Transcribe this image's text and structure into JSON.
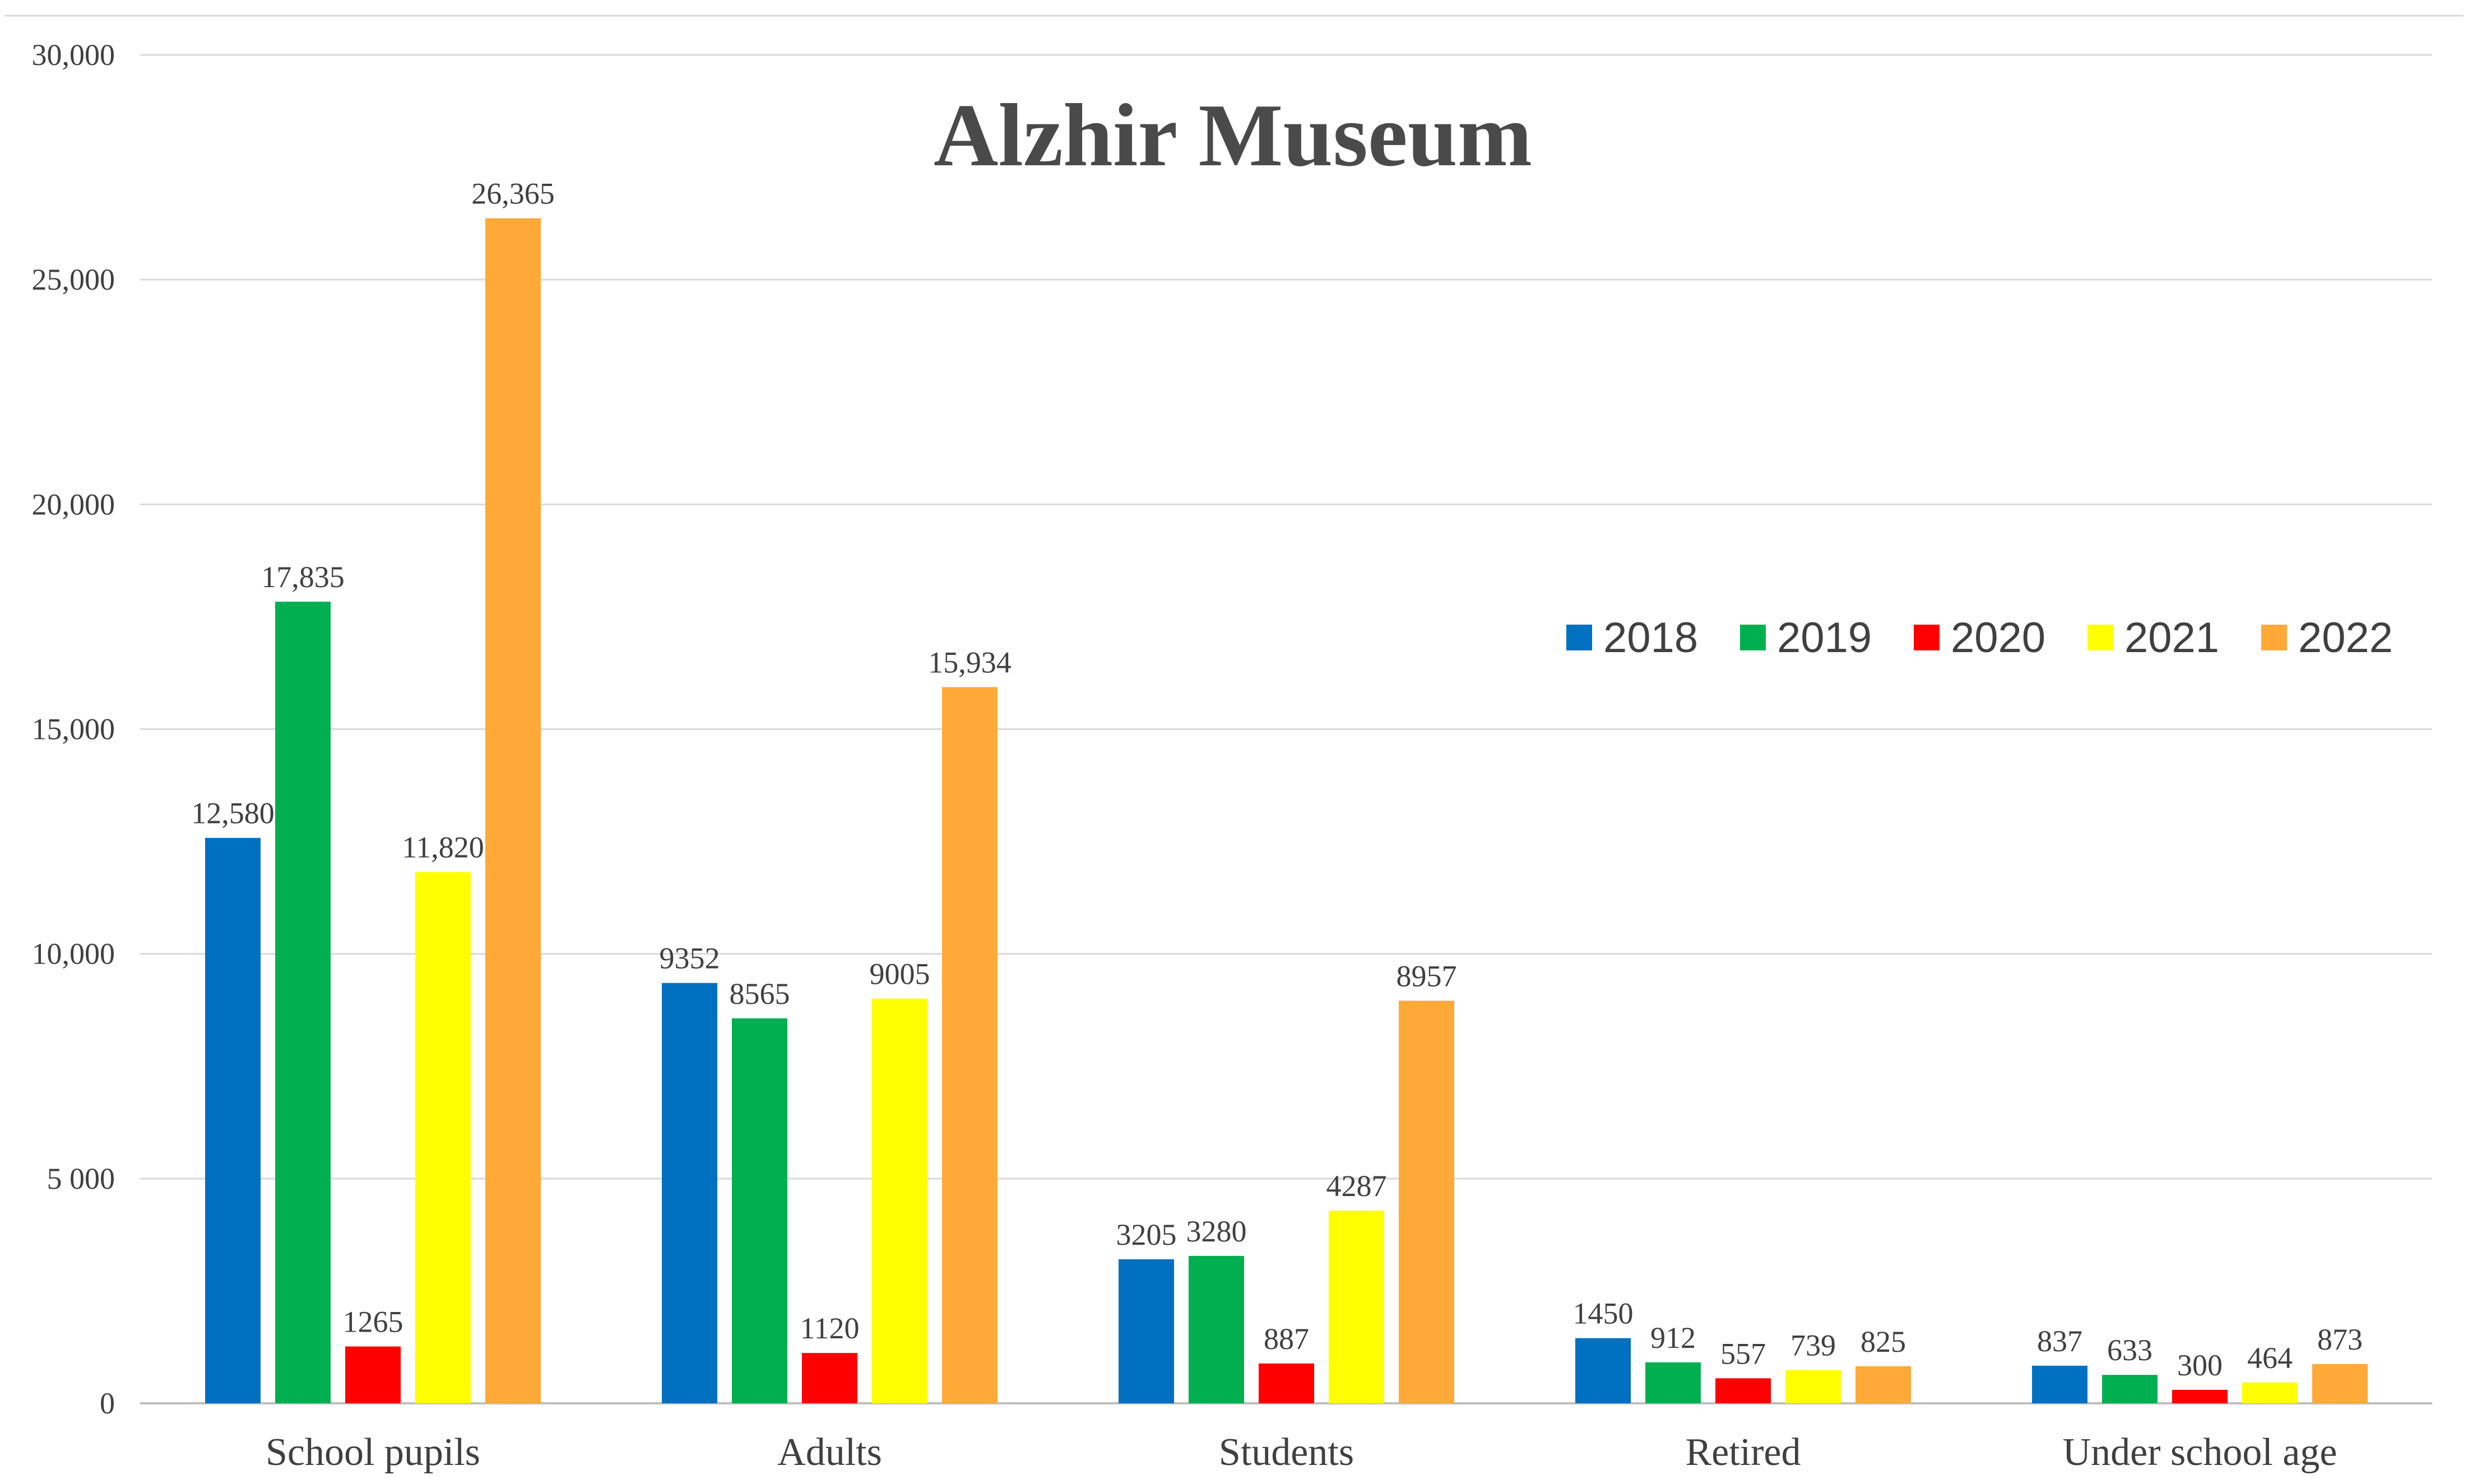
{
  "chart_data": {
    "type": "bar",
    "title": "Alzhir Museum",
    "xlabel": "",
    "ylabel": "",
    "categories": [
      "School pupils",
      "Adults",
      "Students",
      "Retired",
      "Under school age"
    ],
    "ylim": [
      0,
      30000
    ],
    "yticks": [
      0,
      5000,
      10000,
      15000,
      20000,
      25000,
      30000
    ],
    "ytick_labels": [
      "0",
      "5 000",
      "10,000",
      "15,000",
      "20,000",
      "25,000",
      "30,000"
    ],
    "grid": true,
    "legend_position": "right",
    "series": [
      {
        "name": "2018",
        "color": "#0070C0",
        "values": [
          12580,
          9352,
          3205,
          1450,
          837
        ],
        "labels": [
          "12,580",
          "9352",
          "3205",
          "1450",
          "837"
        ]
      },
      {
        "name": "2019",
        "color": "#00B050",
        "values": [
          17835,
          8565,
          3280,
          912,
          633
        ],
        "labels": [
          "17,835",
          "8565",
          "3280",
          "912",
          "633"
        ]
      },
      {
        "name": "2020",
        "color": "#FF0000",
        "values": [
          1265,
          1120,
          887,
          557,
          300
        ],
        "labels": [
          "1265",
          "1120",
          "887",
          "557",
          "300"
        ]
      },
      {
        "name": "2021",
        "color": "#FFFF00",
        "values": [
          11820,
          9005,
          4287,
          739,
          464
        ],
        "labels": [
          "11,820",
          "9005",
          "4287",
          "739",
          "464"
        ]
      },
      {
        "name": "2022",
        "color": "#FFA938",
        "values": [
          26365,
          15934,
          8957,
          825,
          873
        ],
        "labels": [
          "26,365",
          "15,934",
          "8957",
          "825",
          "873"
        ]
      }
    ]
  }
}
